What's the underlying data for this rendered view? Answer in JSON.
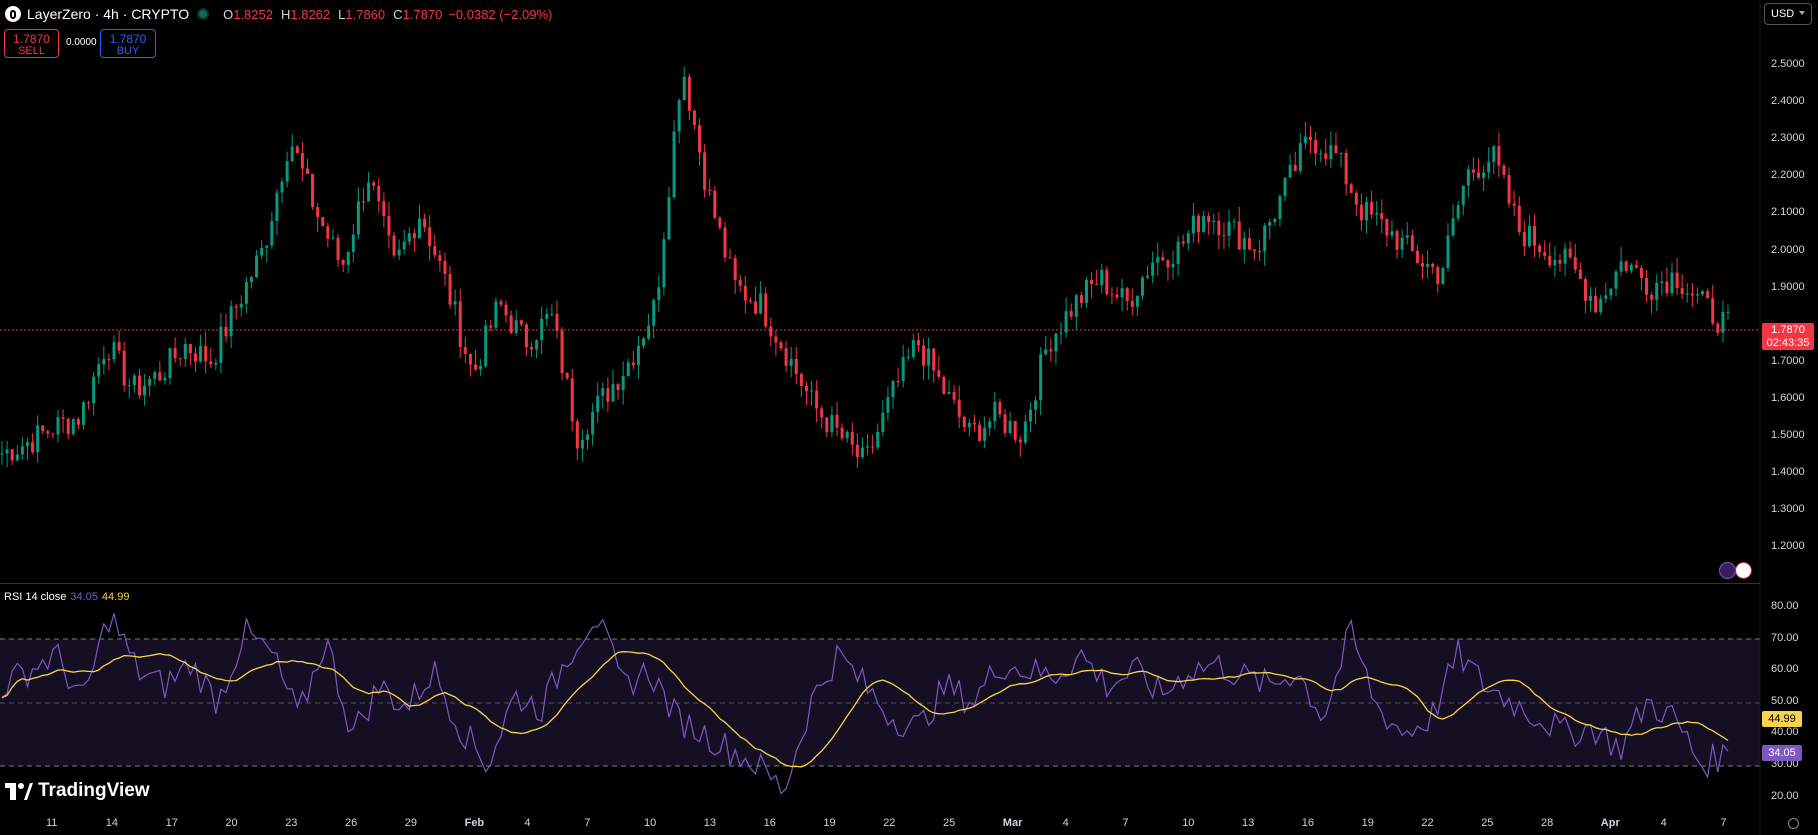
{
  "header": {
    "symbol": "LayerZero · 4h · CRYPTO",
    "ohlc": {
      "o_label": "O",
      "o": "1.8252",
      "h_label": "H",
      "h": "1.8262",
      "l_label": "L",
      "l": "1.7860",
      "c_label": "C",
      "c": "1.7870",
      "change": "−0.0382 (−2.09%)"
    }
  },
  "trade": {
    "sell_price": "1.7870",
    "sell_label": "SELL",
    "spread": "0.0000",
    "buy_price": "1.7870",
    "buy_label": "BUY"
  },
  "currency": "USD",
  "price_axis": [
    "2.5000",
    "2.4000",
    "2.3000",
    "2.2000",
    "2.1000",
    "2.0000",
    "1.9000",
    "1.7000",
    "1.6000",
    "1.5000",
    "1.4000",
    "1.3000",
    "1.2000"
  ],
  "last_price": {
    "value": "1.7870",
    "countdown": "02:43:35"
  },
  "rsi": {
    "label": "RSI 14 close",
    "rsi_value": "34.05",
    "ma_value": "44.99",
    "axis": [
      "80.00",
      "70.00",
      "60.00",
      "50.00",
      "40.00",
      "30.00",
      "20.00"
    ]
  },
  "time_axis": [
    "11",
    "14",
    "17",
    "20",
    "23",
    "26",
    "29",
    "Feb",
    "4",
    "7",
    "10",
    "13",
    "16",
    "19",
    "22",
    "25",
    "Mar",
    "4",
    "7",
    "10",
    "13",
    "16",
    "19",
    "22",
    "25",
    "28",
    "Apr",
    "4",
    "7"
  ],
  "watermark": "TradingView",
  "colors": {
    "up": "#089981",
    "down": "#f23645",
    "rsi": "#7e57c2",
    "rsi_ma": "#f7d44c"
  },
  "chart_data": {
    "type": "candlestick",
    "title": "LayerZero · 4h · CRYPTO",
    "ylim": [
      1.15,
      2.6
    ],
    "close_path": [
      1.45,
      1.48,
      1.52,
      1.55,
      1.75,
      1.62,
      1.66,
      1.74,
      1.7,
      1.85,
      2.0,
      2.3,
      2.1,
      1.95,
      2.2,
      1.95,
      2.1,
      1.9,
      1.66,
      1.85,
      1.75,
      1.82,
      1.5,
      1.6,
      1.7,
      1.85,
      2.5,
      2.15,
      1.9,
      1.85,
      1.72,
      1.58,
      1.5,
      1.42,
      1.6,
      1.75,
      1.62,
      1.5,
      1.55,
      1.5,
      1.75,
      1.85,
      1.92,
      1.85,
      1.97,
      2.0,
      2.1,
      2.05,
      2.0,
      2.15,
      2.3,
      2.25,
      2.1,
      2.05,
      1.98,
      1.93,
      2.2,
      2.25,
      2.05,
      2.0,
      1.95,
      1.85,
      1.97,
      1.9,
      1.93,
      1.85,
      1.79
    ],
    "rsi_path": [
      55,
      60,
      65,
      50,
      78,
      60,
      55,
      62,
      50,
      72,
      65,
      45,
      70,
      40,
      55,
      48,
      60,
      42,
      30,
      52,
      48,
      65,
      78,
      55,
      60,
      45,
      40,
      35,
      30,
      22,
      50,
      65,
      55,
      45,
      42,
      55,
      50,
      62,
      60,
      58,
      65,
      55,
      60,
      52,
      60,
      62,
      58,
      55,
      60,
      45,
      72,
      48,
      40,
      45,
      65,
      55,
      50,
      45,
      40,
      42,
      35,
      50,
      45,
      30,
      34
    ]
  }
}
